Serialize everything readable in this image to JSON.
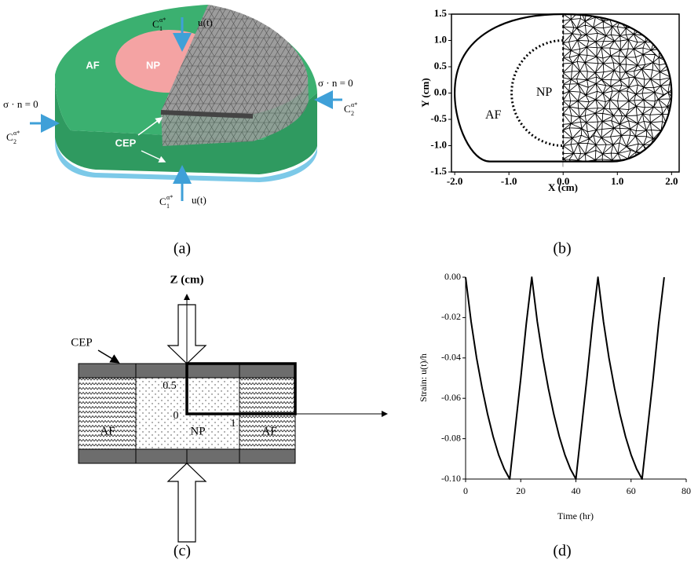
{
  "panel_labels": [
    "(a)",
    "(b)",
    "(c)",
    "(d)"
  ],
  "diagram_a": {
    "af": "AF",
    "np": "NP",
    "cep": "CEP",
    "flux_left": "σ · n = 0",
    "flux_right": "σ · n = 0",
    "conc_top": {
      "base": "C",
      "sub": "1",
      "sup": "α*"
    },
    "disp_top": "u(t)",
    "conc_bottom": {
      "base": "C",
      "sub": "1",
      "sup": "α*"
    },
    "disp_bottom": "u(t)",
    "conc_left": {
      "base": "C",
      "sub": "2",
      "sup": "α*"
    },
    "conc_right": {
      "base": "C",
      "sub": "2",
      "sup": "α*"
    }
  },
  "diagram_c": {
    "axis_label": "Z (cm)",
    "cep": "CEP",
    "af_left": "AF",
    "np": "NP",
    "af_right": "AF",
    "tick_half": "0.5",
    "tick_zero": "0",
    "tick_one": "1"
  },
  "chart_data": [
    {
      "type": "mesh",
      "x_label": "X (cm)",
      "y_label": "Y (cm)",
      "region_labels": [
        "AF",
        "NP"
      ],
      "xlim": [
        -2.06,
        2.14
      ],
      "ylim": [
        -1.5,
        1.5
      ],
      "xticks": [
        {
          "value": -2,
          "label": "-2.0"
        },
        {
          "value": -1,
          "label": "-1.0"
        },
        {
          "value": 0,
          "label": "0.0"
        },
        {
          "value": 1,
          "label": "1.0"
        },
        {
          "value": 2,
          "label": "2.0"
        }
      ],
      "yticks": [
        1.5,
        {
          "value": 1,
          "label": "1.0"
        },
        0.5,
        {
          "value": 0,
          "label": "0.0"
        },
        -0.5,
        {
          "value": -1,
          "label": "-1.0"
        },
        -1.5
      ]
    },
    {
      "type": "line",
      "x_label": "Time (hr)",
      "y_label": "Strain: u(t)/h",
      "xlim": [
        0,
        80
      ],
      "ylim": [
        -0.1,
        0
      ],
      "xticks": [
        0,
        20,
        40,
        60,
        80
      ],
      "yticks": [
        {
          "value": 0,
          "label": "0.00"
        },
        -0.02,
        -0.04,
        -0.06,
        -0.08,
        {
          "value": -0.1,
          "label": "-0.10"
        }
      ],
      "x": [
        0,
        2,
        4,
        6,
        8,
        10,
        12,
        14,
        16,
        18,
        20,
        22,
        24,
        26,
        28,
        30,
        32,
        34,
        36,
        38,
        40,
        42,
        44,
        46,
        48,
        50,
        52,
        54,
        56,
        58,
        60,
        62,
        64,
        66,
        68,
        70,
        72
      ],
      "series": [
        {
          "color": "#000000",
          "values": [
            0,
            -0.022,
            -0.04,
            -0.055,
            -0.068,
            -0.079,
            -0.088,
            -0.095,
            -0.1,
            -0.075,
            -0.05,
            -0.023,
            0,
            -0.022,
            -0.04,
            -0.055,
            -0.068,
            -0.079,
            -0.088,
            -0.095,
            -0.1,
            -0.075,
            -0.05,
            -0.023,
            0,
            -0.022,
            -0.04,
            -0.055,
            -0.068,
            -0.079,
            -0.088,
            -0.095,
            -0.1,
            -0.075,
            -0.05,
            -0.023,
            0
          ]
        }
      ]
    }
  ]
}
